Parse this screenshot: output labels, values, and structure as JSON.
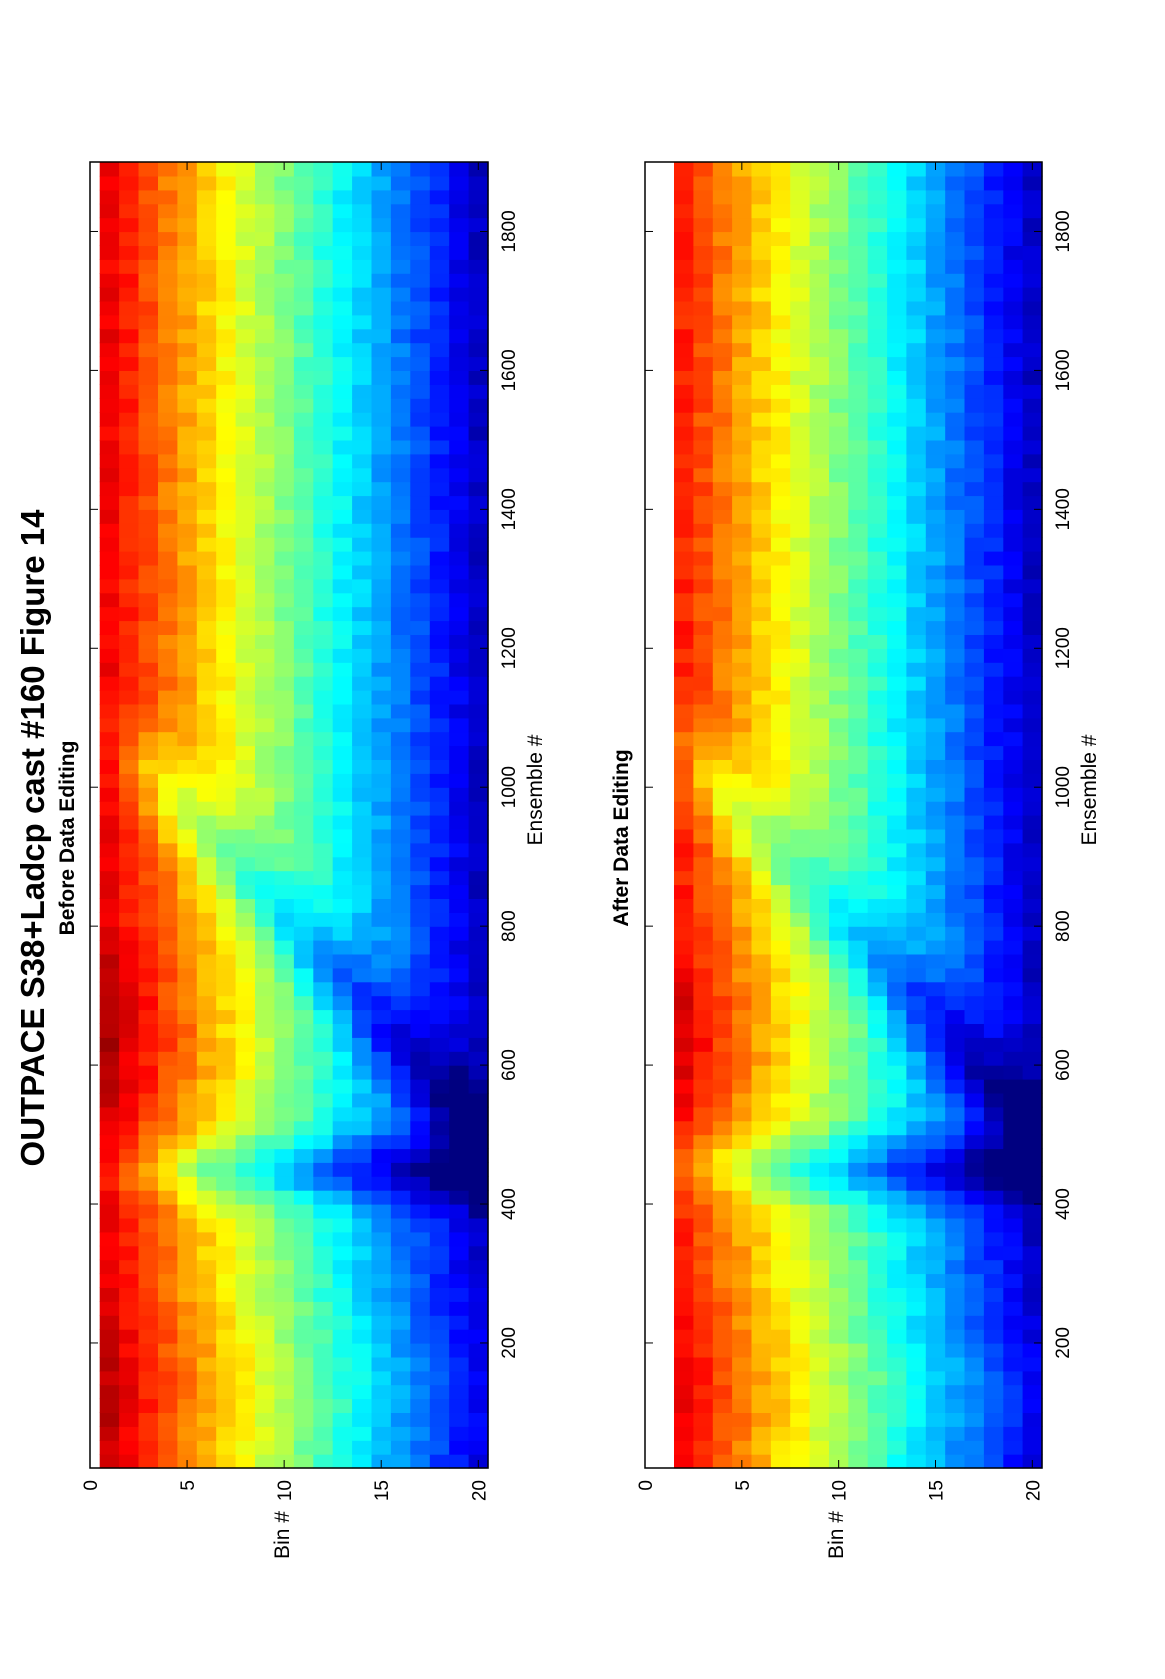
{
  "title": "OUTPACE S38+Ladcp cast #160  Figure 14",
  "chart_data": [
    {
      "type": "heatmap",
      "subtitle": "Before Data Editing",
      "xlabel": "Ensemble #",
      "ylabel": "Bin #",
      "xlim": [
        20,
        1900
      ],
      "ylim": [
        0,
        20.5
      ],
      "xticks": [
        200,
        400,
        600,
        800,
        1000,
        1200,
        1400,
        1600,
        1800
      ],
      "yticks": [
        0,
        5,
        10,
        15,
        20
      ],
      "colormap": "jet",
      "bins": 20,
      "edited": false
    },
    {
      "type": "heatmap",
      "subtitle": "After Data Editing",
      "xlabel": "Ensemble #",
      "ylabel": "Bin #",
      "xlim": [
        20,
        1900
      ],
      "ylim": [
        0,
        20.5
      ],
      "xticks": [
        200,
        400,
        600,
        800,
        1000,
        1200,
        1400,
        1600,
        1800
      ],
      "yticks": [
        0,
        5,
        10,
        15,
        20
      ],
      "colormap": "jet",
      "bins": 20,
      "edited": true
    }
  ]
}
